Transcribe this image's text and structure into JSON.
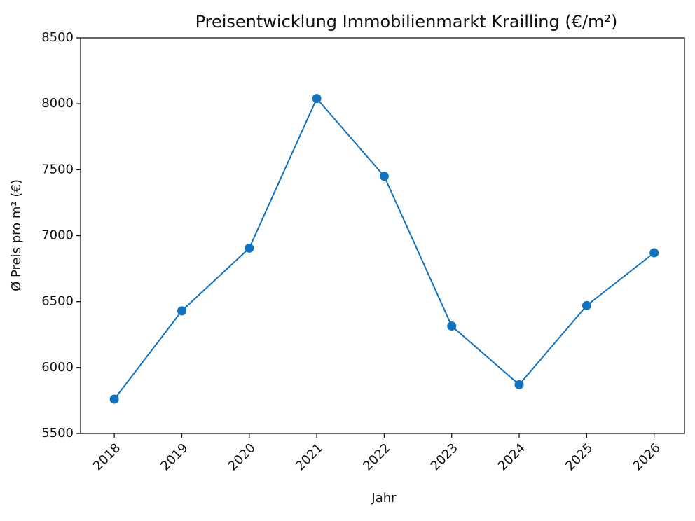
{
  "chart_data": {
    "type": "line",
    "title": "Preisentwicklung Immobilienmarkt Krailling (€/m²)",
    "x_label": "Jahr",
    "y_label": "Ø Preis pro m² (€)",
    "x": [
      2018,
      2019,
      2020,
      2021,
      2022,
      2023,
      2024,
      2025,
      2026
    ],
    "series": [
      {
        "name": "Ø Preis pro m²",
        "color": "#1172bf",
        "values": [
          5760,
          6430,
          6905,
          8040,
          7450,
          6315,
          5870,
          6470,
          6870
        ]
      }
    ],
    "xlim": [
      2017.5,
      2026.45
    ],
    "xticks": [
      2018,
      2019,
      2020,
      2021,
      2022,
      2023,
      2024,
      2025,
      2026
    ],
    "ylim": [
      5500,
      8500
    ],
    "yticks": [
      5500,
      6000,
      6500,
      7000,
      7500,
      8000,
      8500
    ],
    "grid": false,
    "markers": true
  }
}
